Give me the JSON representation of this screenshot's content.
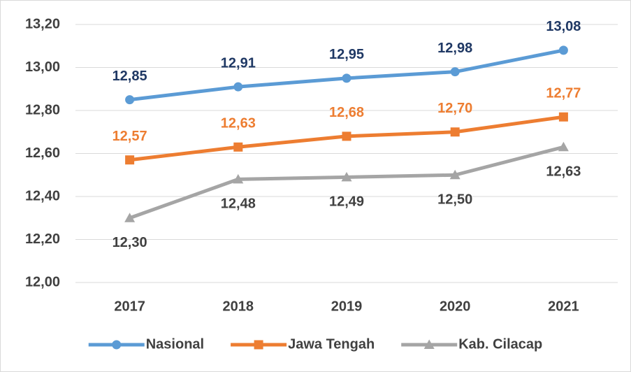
{
  "chart_data": {
    "type": "line",
    "categories": [
      "2017",
      "2018",
      "2019",
      "2020",
      "2021"
    ],
    "series": [
      {
        "name": "Nasional",
        "color": "#5b9bd5",
        "label_color": "#1f3864",
        "marker": "circle",
        "values": [
          12.85,
          12.91,
          12.95,
          12.98,
          13.08
        ],
        "value_labels": [
          "12,85",
          "12,91",
          "12,95",
          "12,98",
          "13,08"
        ]
      },
      {
        "name": "Jawa Tengah",
        "color": "#ed7d31",
        "label_color": "#ed7d31",
        "marker": "square",
        "values": [
          12.57,
          12.63,
          12.68,
          12.7,
          12.77
        ],
        "value_labels": [
          "12,57",
          "12,63",
          "12,68",
          "12,70",
          "12,77"
        ]
      },
      {
        "name": "Kab. Cilacap",
        "color": "#a5a5a5",
        "label_color": "#404040",
        "marker": "triangle",
        "values": [
          12.3,
          12.48,
          12.49,
          12.5,
          12.63
        ],
        "value_labels": [
          "12,30",
          "12,48",
          "12,49",
          "12,50",
          "12,63"
        ]
      }
    ],
    "ylim": [
      12,
      13.2
    ],
    "yticks": [
      {
        "value": 12,
        "label": "12,00"
      },
      {
        "value": 12.2,
        "label": "12,20"
      },
      {
        "value": 12.4,
        "label": "12,40"
      },
      {
        "value": 12.6,
        "label": "12,60"
      },
      {
        "value": 12.8,
        "label": "12,80"
      },
      {
        "value": 13,
        "label": "13,00"
      },
      {
        "value": 13.2,
        "label": "13,20"
      }
    ],
    "grid": true,
    "legend": "bottom"
  }
}
